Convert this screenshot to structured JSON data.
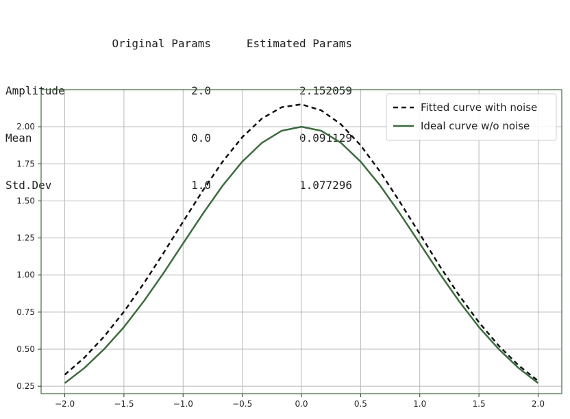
{
  "params_table": {
    "headers": [
      "",
      "Original Params",
      "Estimated Params"
    ],
    "rows": [
      {
        "name": "Amplitude",
        "original": "2.0",
        "estimated": "2.152059"
      },
      {
        "name": "Mean",
        "original": "0.0",
        "estimated": "0.091129"
      },
      {
        "name": "Std.Dev",
        "original": "1.0",
        "estimated": "1.077296"
      }
    ]
  },
  "colors": {
    "fitted": "#111111",
    "ideal": "#3d6b3d",
    "grid": "#b8b8b8",
    "frame": "#3d6b3d"
  },
  "chart_data": {
    "type": "line",
    "title": "",
    "xlabel": "",
    "ylabel": "",
    "xlim": [
      -2.2,
      2.2
    ],
    "ylim": [
      0.2,
      2.25
    ],
    "grid": true,
    "legend_position": "top-right",
    "xticks": [
      -2.0,
      -1.5,
      -1.0,
      -0.5,
      0.0,
      0.5,
      1.0,
      1.5,
      2.0
    ],
    "xtick_labels": [
      "−2.0",
      "−1.5",
      "−1.0",
      "−0.5",
      "0.0",
      "0.5",
      "1.0",
      "1.5",
      "2.0"
    ],
    "yticks": [
      0.25,
      0.5,
      0.75,
      1.0,
      1.25,
      1.5,
      1.75,
      2.0
    ],
    "ytick_labels": [
      "0.25",
      "0.50",
      "0.75",
      "1.00",
      "1.25",
      "1.50",
      "1.75",
      "2.00"
    ],
    "x": [
      -2.0,
      -1.8333,
      -1.6667,
      -1.5,
      -1.3333,
      -1.1667,
      -1.0,
      -0.8333,
      -0.6667,
      -0.5,
      -0.3333,
      -0.1667,
      0.0,
      0.1667,
      0.3333,
      0.5,
      0.6667,
      0.8333,
      1.0,
      1.1667,
      1.3333,
      1.5,
      1.6667,
      1.8333,
      2.0
    ],
    "series": [
      {
        "name": "Fitted curve with noise",
        "style": "dashed",
        "values": [
          0.328,
          0.444,
          0.586,
          0.753,
          0.942,
          1.147,
          1.36,
          1.57,
          1.764,
          1.93,
          2.056,
          2.132,
          2.151,
          2.111,
          2.017,
          1.875,
          1.695,
          1.491,
          1.277,
          1.063,
          0.862,
          0.681,
          0.524,
          0.392,
          0.286
        ]
      },
      {
        "name": "Ideal curve w/o noise",
        "style": "solid",
        "values": [
          0.271,
          0.374,
          0.501,
          0.649,
          0.822,
          1.012,
          1.213,
          1.413,
          1.602,
          1.765,
          1.892,
          1.973,
          2.0,
          1.973,
          1.892,
          1.765,
          1.602,
          1.413,
          1.213,
          1.012,
          0.822,
          0.649,
          0.501,
          0.374,
          0.271
        ]
      }
    ]
  }
}
